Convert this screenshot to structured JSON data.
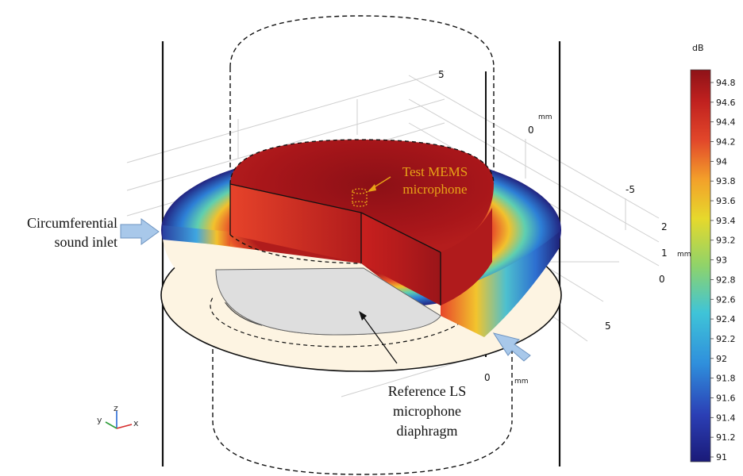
{
  "annotations": {
    "test_mic": [
      "Test MEMS",
      "microphone"
    ],
    "inlet": [
      "Circumferential",
      "sound inlet"
    ],
    "reference": [
      "Reference LS",
      "microphone",
      "diaphragm"
    ]
  },
  "axes": {
    "x_ticks": [
      "5",
      "0",
      "-5"
    ],
    "x_unit": "mm",
    "z_ticks": [
      "2",
      "1",
      "0"
    ],
    "z_unit": "mm",
    "y_ticks": [
      "5",
      "0"
    ],
    "y_unit": "mm"
  },
  "triad": {
    "x": "x",
    "y": "y",
    "z": "z"
  },
  "colorbar": {
    "unit": "dB",
    "min": 91,
    "max": 94.9,
    "ticks": [
      "94.8",
      "94.6",
      "94.4",
      "94.2",
      "94",
      "93.8",
      "93.6",
      "93.4",
      "93.2",
      "93",
      "92.8",
      "92.6",
      "92.4",
      "92.2",
      "92",
      "91.8",
      "91.6",
      "91.4",
      "91.2",
      "91"
    ]
  },
  "colors": {
    "hot": "#a01417",
    "mid": "#d93a25",
    "cool_edge": "#2a2a8c",
    "annotation": "#e8a317",
    "inlet_arrow": "#a8c8ea",
    "base": "#fdf4e2",
    "diaphragm": "#dcdcdc"
  }
}
